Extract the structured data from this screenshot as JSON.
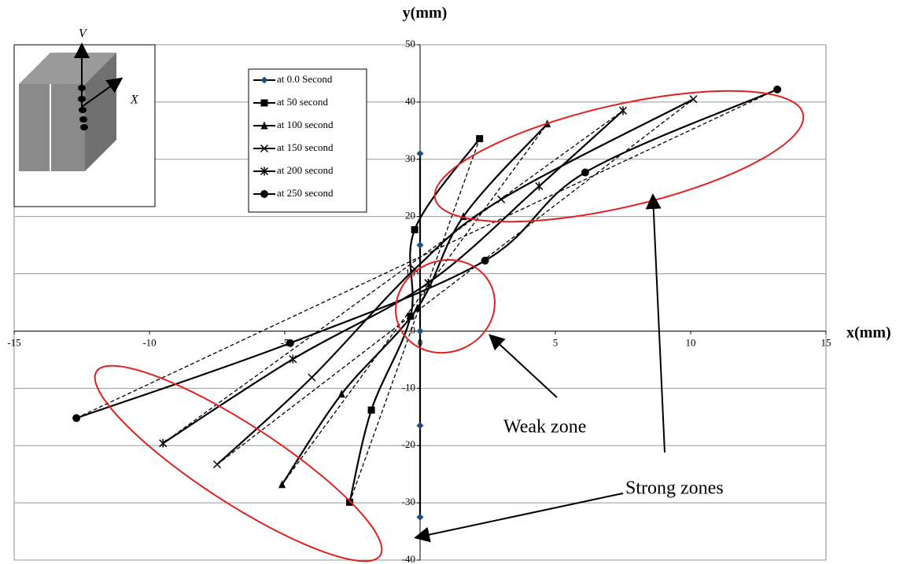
{
  "chart_data": {
    "type": "line",
    "x_label": "x(mm)",
    "y_label": "y(mm)",
    "xlim": [
      -15,
      15
    ],
    "xticks": [
      -15,
      -10,
      -5,
      0,
      5,
      10,
      15
    ],
    "ylim": [
      -40,
      50
    ],
    "yticks": [
      -40,
      -30,
      -20,
      -10,
      0,
      10,
      20,
      30,
      40,
      50
    ],
    "grid": true,
    "legend": "upper left",
    "annotations": [
      "Weak zone",
      "Strong zones"
    ],
    "inset_labels": [
      "V",
      "X"
    ],
    "series": [
      {
        "name": "at 0.0 Second",
        "color": "#1f4e79",
        "marker": "diamond",
        "x": [
          0,
          0,
          0,
          0,
          0
        ],
        "values": [
          31,
          15,
          0,
          -16.5,
          -32.5
        ]
      },
      {
        "name": "at 50 second",
        "color": "#000000",
        "marker": "square",
        "x": [
          -2.6,
          -1.8,
          -0.35,
          -0.2,
          2.2
        ],
        "values": [
          -29.9,
          -13.8,
          2.6,
          17.7,
          33.6
        ]
      },
      {
        "name": "at 100 second",
        "color": "#000000",
        "marker": "triangle",
        "x": [
          -5.1,
          -2.9,
          -0.1,
          1.6,
          4.7
        ],
        "values": [
          -26.8,
          -11,
          4,
          20,
          36.2
        ]
      },
      {
        "name": "at 150 second",
        "color": "#000000",
        "marker": "x",
        "x": [
          -7.5,
          -4,
          -0.2,
          3,
          10.1
        ],
        "values": [
          -23.3,
          -8.1,
          10.8,
          23,
          40.5
        ]
      },
      {
        "name": "at 200 second",
        "color": "#000000",
        "marker": "asterisk",
        "x": [
          -9.5,
          -4.7,
          0.3,
          4.4,
          7.5
        ],
        "values": [
          -19.6,
          -4.9,
          8.4,
          25.3,
          38.5
        ]
      },
      {
        "name": "at 250 second",
        "color": "#000000",
        "marker": "circle",
        "x": [
          -12.7,
          -4.8,
          2.4,
          6.1,
          13.2
        ],
        "values": [
          -15.2,
          -2.1,
          12.3,
          27.7,
          42.2
        ]
      }
    ]
  }
}
